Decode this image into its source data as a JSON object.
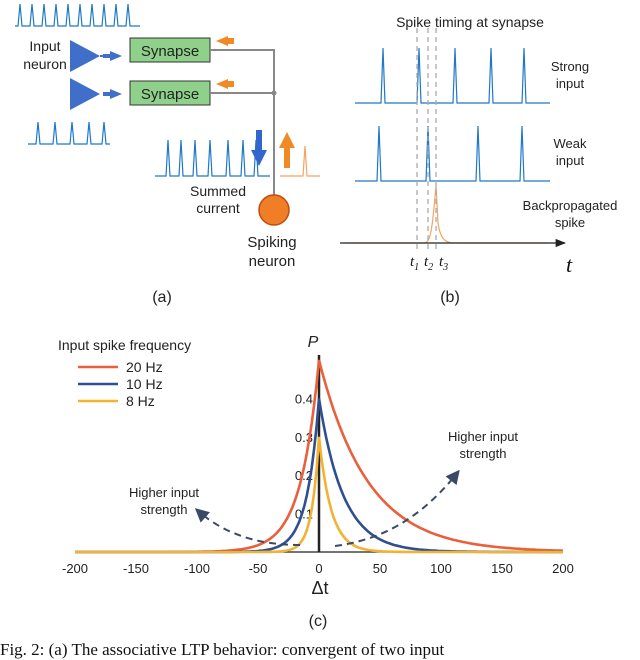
{
  "panel_a": {
    "input_neuron_label": [
      "Input",
      "neuron"
    ],
    "synapse_label": "Synapse",
    "summed_current_label": [
      "Summed",
      "current"
    ],
    "spiking_neuron_label": [
      "Spiking",
      "neuron"
    ],
    "caption": "(a)"
  },
  "panel_b": {
    "title": "Spike timing at synapse",
    "strong_input_label": [
      "Strong",
      "input"
    ],
    "weak_input_label": [
      "Weak",
      "input"
    ],
    "backprop_label": [
      "Backpropagated",
      "spike"
    ],
    "t1_label": "t",
    "t1_sub": "1",
    "t2_label": "t",
    "t2_sub": "2",
    "t3_label": "t",
    "t3_sub": "3",
    "axis_label": "t",
    "caption": "(b)"
  },
  "colors": {
    "spike_blue": "#1f78c8",
    "spike_orange": "#f4a460",
    "synapse_green": "#8fd18a",
    "arrow_orange": "#f08a24",
    "arrow_blue": "#3366cc",
    "neuron_orange": "#f07e26",
    "triangle_blue": "#3f6fc8"
  },
  "chart_data": {
    "type": "line",
    "legend_title": "Input spike frequency",
    "legend_position": "top-left",
    "series": [
      {
        "name": "20 Hz",
        "color": "#e8603c",
        "peak": 0.5,
        "tau_pos": 40,
        "tau_neg": 15
      },
      {
        "name": "10 Hz",
        "color": "#2f4f8f",
        "peak": 0.4,
        "tau_pos": 20,
        "tau_neg": 10
      },
      {
        "name": "8 Hz",
        "color": "#f2b233",
        "peak": 0.3,
        "tau_pos": 10,
        "tau_neg": 6
      }
    ],
    "xlim": [
      -200,
      200
    ],
    "ylim": [
      0,
      0.5
    ],
    "xticks": [
      -200,
      -150,
      -100,
      -50,
      0,
      50,
      100,
      150,
      200
    ],
    "yticks": [
      0.1,
      0.2,
      0.3,
      0.4
    ],
    "xlabel": "Δt",
    "ylabel": "P",
    "annotation_right": [
      "Higher input",
      "strength"
    ],
    "annotation_left": [
      "Higher input",
      "strength"
    ],
    "caption": "(c)"
  },
  "figure_caption": "Fig. 2: (a) The associative LTP behavior: convergent of two input"
}
